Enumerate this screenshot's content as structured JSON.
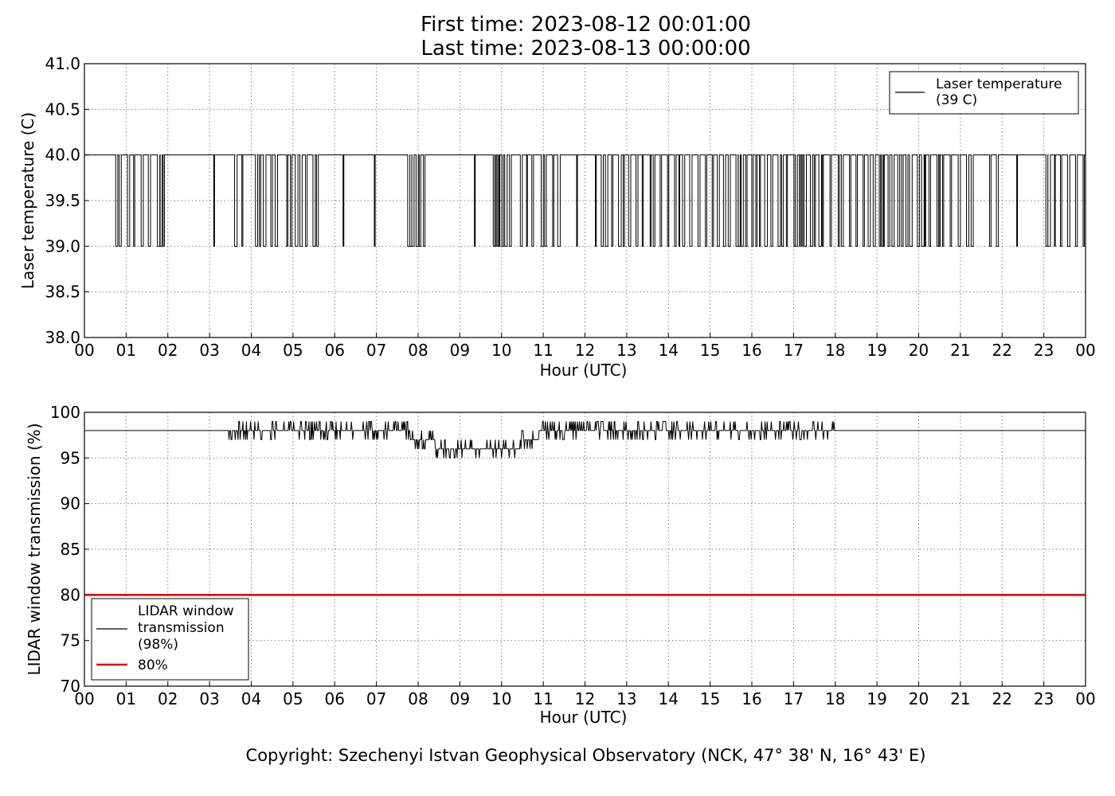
{
  "title_line1": "First time: 2023-08-12 00:01:00",
  "title_line2": "Last time: 2023-08-13 00:00:00",
  "copyright": "Copyright: Szechenyi Istvan Geophysical Observatory (NCK, 47° 38' N, 16° 43' E)",
  "colors": {
    "series": "#000000",
    "threshold": "#e00000",
    "grid": "#808080"
  },
  "chart_data": [
    {
      "type": "line",
      "xlabel": "Hour (UTC)",
      "ylabel": "Laser temperature (C)",
      "ylim": [
        38.0,
        41.0
      ],
      "xlim": [
        0,
        24
      ],
      "xticks": [
        "00",
        "01",
        "02",
        "03",
        "04",
        "05",
        "06",
        "07",
        "08",
        "09",
        "10",
        "11",
        "12",
        "13",
        "14",
        "15",
        "16",
        "17",
        "18",
        "19",
        "20",
        "21",
        "22",
        "23",
        "00"
      ],
      "yticks": [
        "38.0",
        "38.5",
        "39.0",
        "39.5",
        "40.0",
        "40.5",
        "41.0"
      ],
      "grid": true,
      "legend_position": "top-right",
      "series": [
        {
          "name": "Laser temperature\n(39 C)",
          "color": "#000000",
          "levels": [
            40.0,
            39.0
          ],
          "baseline": 40.0,
          "dip_windows_hours": [
            [
              0.75,
              1.6
            ],
            [
              1.75,
              1.9
            ],
            [
              3.1,
              3.1
            ],
            [
              3.6,
              3.8
            ],
            [
              4.1,
              4.6
            ],
            [
              4.85,
              5.2
            ],
            [
              5.3,
              5.6
            ],
            [
              6.2,
              6.2
            ],
            [
              6.95,
              6.95
            ],
            [
              7.75,
              8.2
            ],
            [
              9.35,
              9.35
            ],
            [
              9.8,
              10.2
            ],
            [
              10.45,
              10.75
            ],
            [
              10.95,
              11.4
            ],
            [
              11.8,
              11.8
            ],
            [
              12.25,
              14.9
            ],
            [
              15.05,
              21.4
            ],
            [
              21.7,
              22.0
            ],
            [
              22.35,
              22.35
            ],
            [
              23.05,
              23.95
            ]
          ]
        }
      ]
    },
    {
      "type": "line",
      "xlabel": "Hour (UTC)",
      "ylabel": "LIDAR window transmission (%)",
      "ylim": [
        70,
        100
      ],
      "xlim": [
        0,
        24
      ],
      "xticks": [
        "00",
        "01",
        "02",
        "03",
        "04",
        "05",
        "06",
        "07",
        "08",
        "09",
        "10",
        "11",
        "12",
        "13",
        "14",
        "15",
        "16",
        "17",
        "18",
        "19",
        "20",
        "21",
        "22",
        "23",
        "00"
      ],
      "yticks": [
        "70",
        "75",
        "80",
        "85",
        "90",
        "95",
        "100"
      ],
      "grid": true,
      "legend_position": "lower-left",
      "series": [
        {
          "name": "LIDAR window\ntransmission\n(98%)",
          "color": "#000000",
          "profile_hours": [
            0,
            3.5,
            4.0,
            5.0,
            6.0,
            7.0,
            7.8,
            8.0,
            8.8,
            9.5,
            10.2,
            10.7,
            11.0,
            12.0,
            13.0,
            15.0,
            17.0,
            18.0,
            24.0
          ],
          "profile_values": [
            98,
            98,
            98,
            98,
            98,
            98,
            97.5,
            97,
            96,
            95.5,
            96,
            97,
            97.8,
            98,
            98,
            98,
            98,
            98,
            98
          ]
        },
        {
          "name": "80%",
          "color": "#e00000",
          "values": [
            80,
            80
          ]
        }
      ]
    }
  ]
}
